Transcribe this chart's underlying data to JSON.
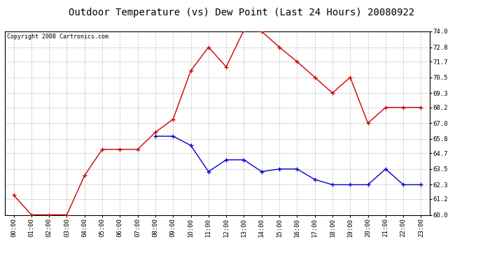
{
  "title": "Outdoor Temperature (vs) Dew Point (Last 24 Hours) 20080922",
  "copyright": "Copyright 2008 Cartronics.com",
  "hours": [
    "00:00",
    "01:00",
    "02:00",
    "03:00",
    "04:00",
    "05:00",
    "06:00",
    "07:00",
    "08:00",
    "09:00",
    "10:00",
    "11:00",
    "12:00",
    "13:00",
    "14:00",
    "15:00",
    "16:00",
    "17:00",
    "18:00",
    "19:00",
    "20:00",
    "21:00",
    "22:00",
    "23:00"
  ],
  "temp": [
    61.5,
    60.0,
    60.0,
    60.0,
    63.0,
    65.0,
    65.0,
    65.0,
    66.3,
    67.3,
    71.0,
    72.8,
    71.3,
    74.1,
    74.0,
    72.8,
    71.7,
    70.5,
    69.3,
    70.5,
    67.0,
    68.2,
    68.2,
    68.2
  ],
  "dew": [
    null,
    null,
    null,
    null,
    null,
    null,
    null,
    null,
    66.0,
    66.0,
    65.3,
    63.3,
    64.2,
    64.2,
    63.3,
    63.5,
    63.5,
    62.7,
    62.3,
    62.3,
    62.3,
    63.5,
    62.3,
    62.3
  ],
  "temp_color": "#cc0000",
  "dew_color": "#0000cc",
  "background_color": "#ffffff",
  "plot_bg_color": "#ffffff",
  "grid_color": "#bbbbbb",
  "ylim": [
    60.0,
    74.0
  ],
  "yticks": [
    60.0,
    61.2,
    62.3,
    63.5,
    64.7,
    65.8,
    67.0,
    68.2,
    69.3,
    70.5,
    71.7,
    72.8,
    74.0
  ],
  "title_fontsize": 10,
  "copyright_fontsize": 6,
  "tick_fontsize": 6.5,
  "marker": "+",
  "marker_size": 4,
  "line_width": 1.0
}
